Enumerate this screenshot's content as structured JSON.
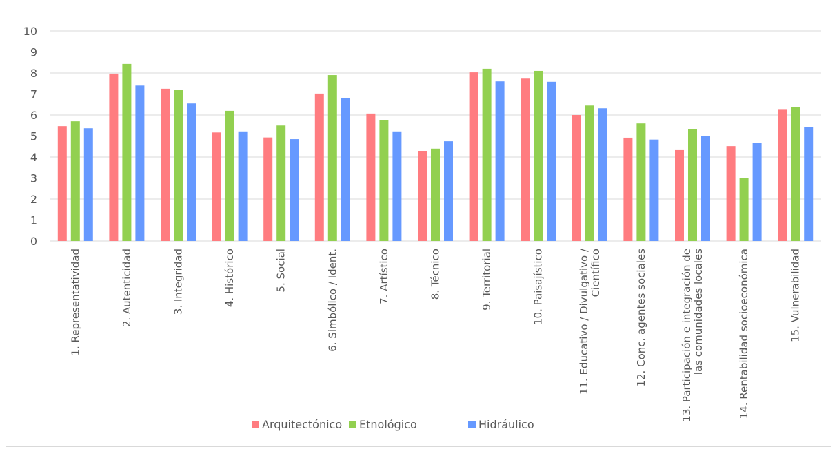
{
  "chart_data": {
    "type": "bar",
    "title": "",
    "xlabel": "",
    "ylabel": "",
    "ylim": [
      0,
      10
    ],
    "yticks": [
      "0",
      "1",
      "2",
      "3",
      "4",
      "5",
      "6",
      "7",
      "8",
      "9",
      "10"
    ],
    "grid": true,
    "legend_position": "bottom",
    "categories": [
      [
        "1. Representatividad"
      ],
      [
        "2. Autenticidad"
      ],
      [
        "3. Integridad"
      ],
      [
        "4. Histórico"
      ],
      [
        "5. Social"
      ],
      [
        "6. Simbólico / Ident."
      ],
      [
        "7. Artístico"
      ],
      [
        "8. Técnico"
      ],
      [
        "9. Territorial"
      ],
      [
        "10. Paisajístico"
      ],
      [
        "11. Educativo / Divulgativo /",
        "Científico"
      ],
      [
        "12. Conc. agentes sociales"
      ],
      [
        "13. Participación e integración de",
        "las comunidades locales"
      ],
      [
        "14. Rentabilidad socioeconómica"
      ],
      [
        "15. Vulnerabilidad"
      ]
    ],
    "series": [
      {
        "name": "Arquitectónico",
        "color": "#ff7c80",
        "values": [
          5.47,
          7.97,
          7.25,
          5.17,
          4.93,
          7.02,
          6.07,
          4.28,
          8.03,
          7.73,
          6.0,
          4.92,
          4.33,
          4.52,
          6.25
        ]
      },
      {
        "name": "Etnológico",
        "color": "#92d050",
        "values": [
          5.7,
          8.43,
          7.2,
          6.2,
          5.5,
          7.9,
          5.77,
          4.4,
          8.2,
          8.1,
          6.45,
          5.6,
          5.33,
          3.0,
          6.38
        ]
      },
      {
        "name": "Hidráulico",
        "color": "#6699ff",
        "values": [
          5.37,
          7.4,
          6.55,
          5.22,
          4.85,
          6.82,
          5.22,
          4.75,
          7.6,
          7.58,
          6.32,
          4.83,
          5.0,
          4.68,
          5.42
        ]
      }
    ]
  }
}
